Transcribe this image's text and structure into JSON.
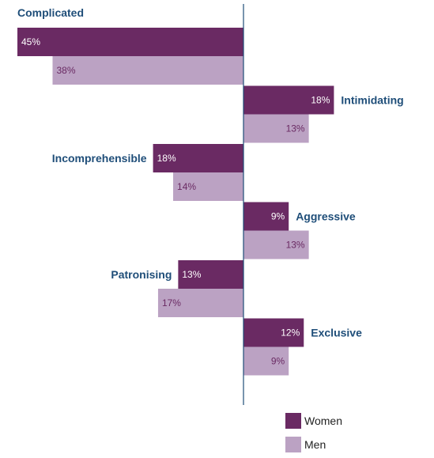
{
  "chart_data": {
    "type": "bar",
    "orientation": "horizontal-diverging",
    "title": "",
    "xlabel": "",
    "ylabel": "",
    "categories": [
      "Complicated",
      "Intimidating",
      "Incomprehensible",
      "Aggressive",
      "Patronising",
      "Exclusive"
    ],
    "category_side": [
      "left",
      "right",
      "left",
      "right",
      "left",
      "right"
    ],
    "series": [
      {
        "name": "Women",
        "values": [
          45,
          18,
          18,
          9,
          13,
          12
        ],
        "color": "#6a2a63"
      },
      {
        "name": "Men",
        "values": [
          38,
          13,
          14,
          13,
          17,
          9
        ],
        "color": "#bba2c3"
      }
    ],
    "value_suffix": "%",
    "legend_placement": "bottom-right",
    "grid": false,
    "axis_color": "#1f4e79",
    "category_label_color": "#1f4e79"
  }
}
